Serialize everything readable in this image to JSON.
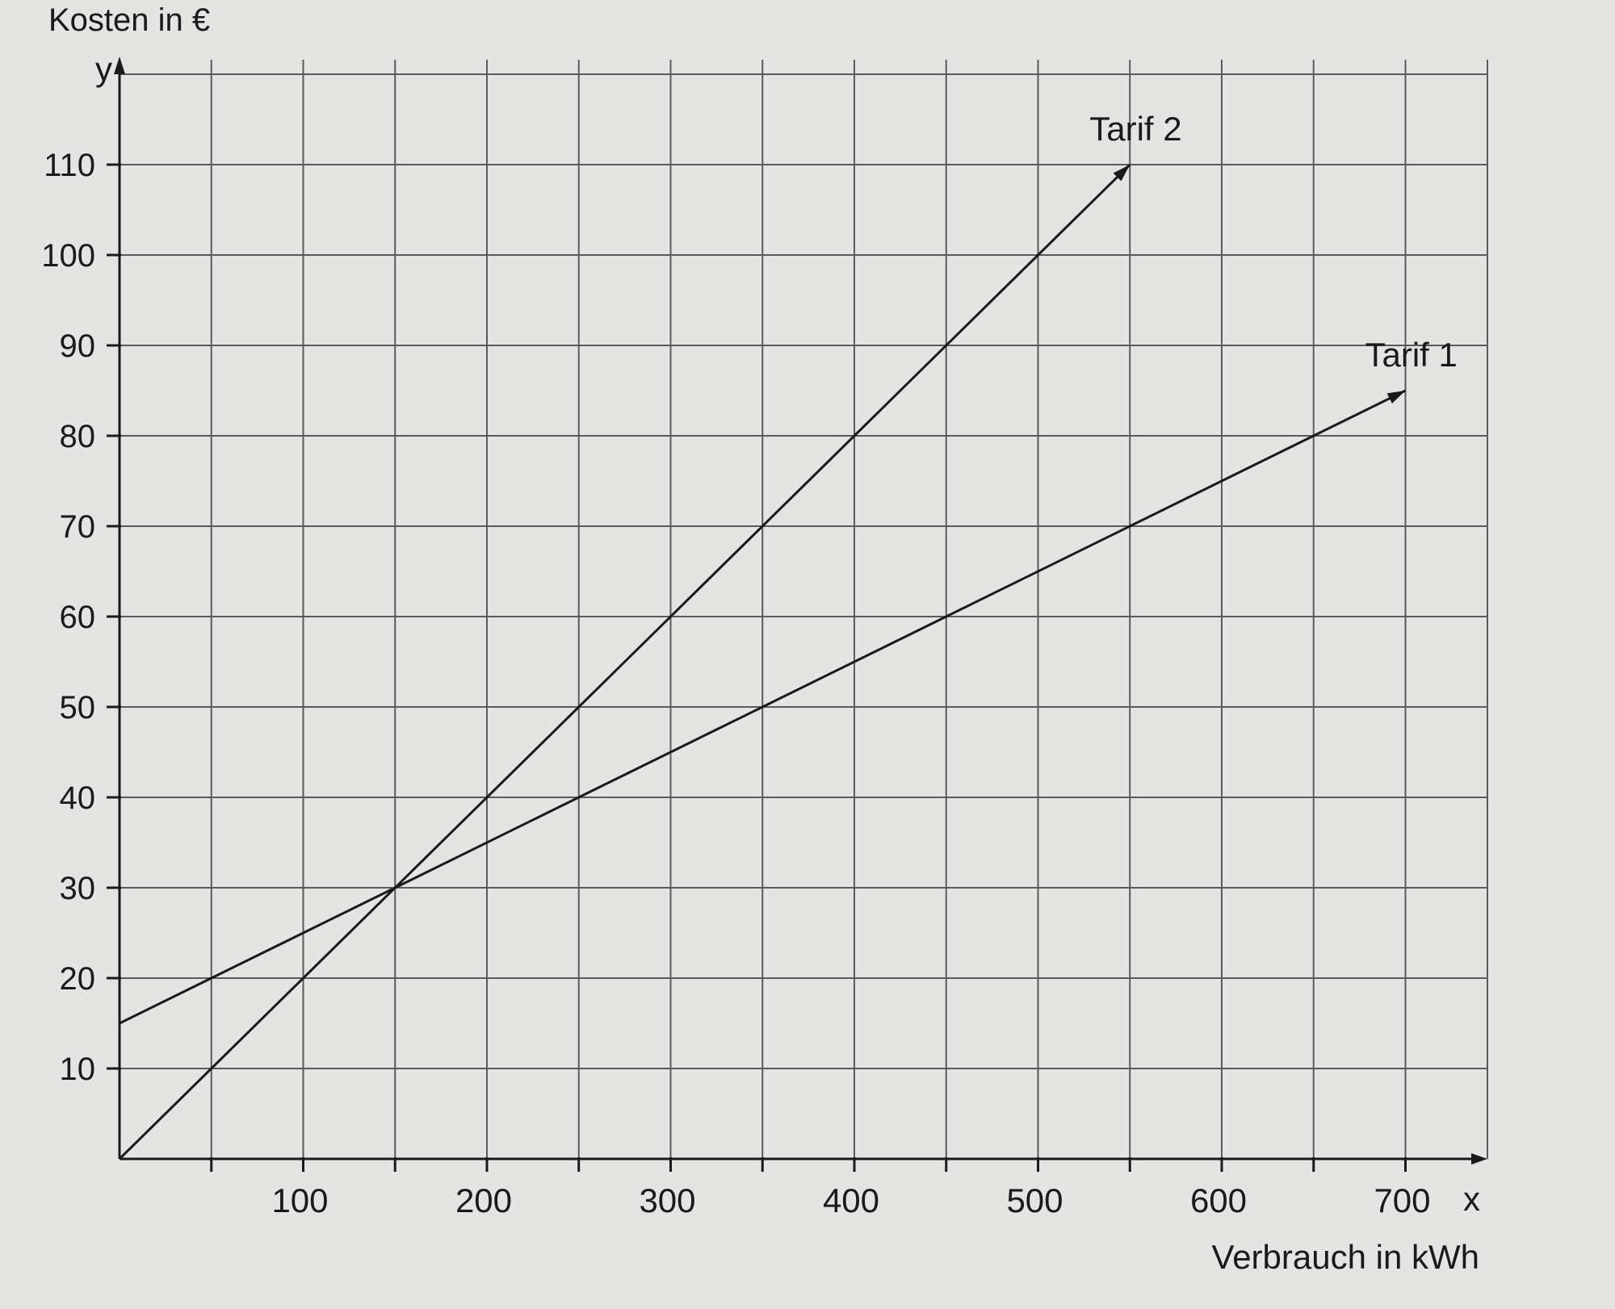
{
  "chart_data": {
    "type": "line",
    "title": "",
    "xlabel": "Verbrauch in kWh",
    "ylabel": "Kosten in €",
    "x_axis_symbol": "x",
    "y_axis_symbol": "y",
    "xlim": [
      0,
      750
    ],
    "ylim": [
      0,
      120
    ],
    "xticks": [
      100,
      200,
      300,
      400,
      500,
      600,
      700
    ],
    "yticks": [
      10,
      20,
      30,
      40,
      50,
      60,
      70,
      80,
      90,
      100,
      110
    ],
    "grid": true,
    "series": [
      {
        "name": "Tarif 1",
        "x": [
          0,
          700
        ],
        "y": [
          15,
          85
        ]
      },
      {
        "name": "Tarif 2",
        "x": [
          0,
          550
        ],
        "y": [
          0,
          110
        ]
      }
    ],
    "colors": {
      "background": "#e4e4e2",
      "grid": "#5a5a5a",
      "line": "#1a1a1a"
    }
  }
}
